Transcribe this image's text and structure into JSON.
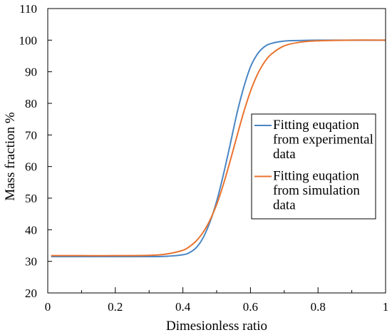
{
  "chart_data": {
    "type": "line",
    "title": "",
    "xlabel": "Dimesionless ratio",
    "ylabel": "Mass fraction %",
    "xlim": [
      0,
      1
    ],
    "ylim": [
      20,
      110
    ],
    "x_ticks": [
      "0",
      "0.2",
      "0.4",
      "0.6",
      "0.8",
      "1"
    ],
    "y_ticks": [
      "20",
      "30",
      "40",
      "50",
      "60",
      "70",
      "80",
      "90",
      "100",
      "110"
    ],
    "grid": false,
    "legend_position": "right",
    "series": [
      {
        "name": "Fitting euqation from experimental data",
        "legend_lines": [
          "Fitting euqation",
          "from experimental",
          "data"
        ],
        "color": "#4a86c4",
        "x": [
          0.01,
          0.1,
          0.2,
          0.3,
          0.35,
          0.4,
          0.42,
          0.44,
          0.46,
          0.48,
          0.5,
          0.52,
          0.54,
          0.56,
          0.58,
          0.6,
          0.62,
          0.64,
          0.66,
          0.7,
          0.75,
          0.8,
          0.9,
          1.0
        ],
        "y": [
          31.5,
          31.5,
          31.5,
          31.5,
          31.6,
          32.1,
          32.8,
          34.4,
          37.5,
          42.4,
          49.0,
          57.5,
          67.0,
          76.8,
          85.0,
          91.5,
          95.5,
          97.8,
          98.9,
          99.7,
          99.9,
          100.0,
          100.0,
          100.0
        ]
      },
      {
        "name": "Fitting euqation from simulation data",
        "legend_lines": [
          "Fitting euqation",
          "from simulation",
          "data"
        ],
        "color": "#e8732f",
        "x": [
          0.01,
          0.1,
          0.2,
          0.3,
          0.35,
          0.4,
          0.42,
          0.44,
          0.46,
          0.48,
          0.5,
          0.52,
          0.54,
          0.56,
          0.58,
          0.6,
          0.62,
          0.64,
          0.66,
          0.7,
          0.75,
          0.8,
          0.9,
          1.0
        ],
        "y": [
          31.8,
          31.8,
          31.8,
          31.9,
          32.3,
          33.5,
          34.7,
          36.5,
          39.2,
          43.0,
          48.0,
          54.4,
          61.8,
          69.6,
          77.2,
          83.8,
          89.0,
          92.8,
          95.4,
          98.2,
          99.4,
          99.8,
          100.0,
          100.0
        ]
      }
    ]
  }
}
